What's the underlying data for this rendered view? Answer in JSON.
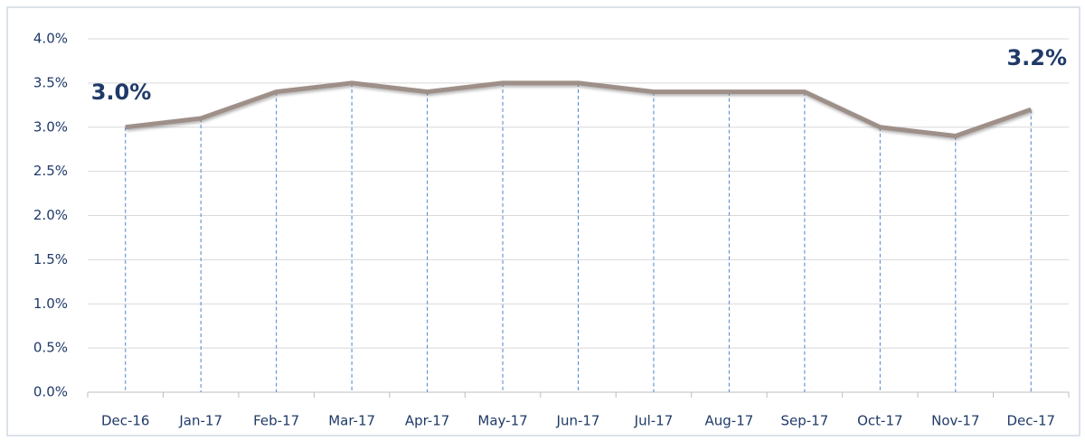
{
  "chart_data": {
    "type": "line",
    "categories": [
      "Dec-16",
      "Jan-17",
      "Feb-17",
      "Mar-17",
      "Apr-17",
      "May-17",
      "Jun-17",
      "Jul-17",
      "Aug-17",
      "Sep-17",
      "Oct-17",
      "Nov-17",
      "Dec-17"
    ],
    "values": [
      3.0,
      3.1,
      3.4,
      3.5,
      3.4,
      3.5,
      3.5,
      3.4,
      3.4,
      3.4,
      3.0,
      2.9,
      3.2
    ],
    "value_labels": [
      "3.0%",
      null,
      null,
      null,
      null,
      null,
      null,
      null,
      null,
      null,
      null,
      null,
      "3.2%"
    ],
    "color": "#9e8f88",
    "ylim": [
      0,
      4
    ],
    "yticks": [
      {
        "value": 0,
        "label": "0.0%"
      },
      {
        "value": 0.5,
        "label": "0.5%"
      },
      {
        "value": 1,
        "label": "1.0%"
      },
      {
        "value": 1.5,
        "label": "1.5%"
      },
      {
        "value": 2,
        "label": "2.0%"
      },
      {
        "value": 2.5,
        "label": "2.5%"
      },
      {
        "value": 3,
        "label": "3.0%"
      },
      {
        "value": 3.5,
        "label": "3.5%"
      },
      {
        "value": 4,
        "label": "4.0%"
      }
    ],
    "grid": true
  }
}
